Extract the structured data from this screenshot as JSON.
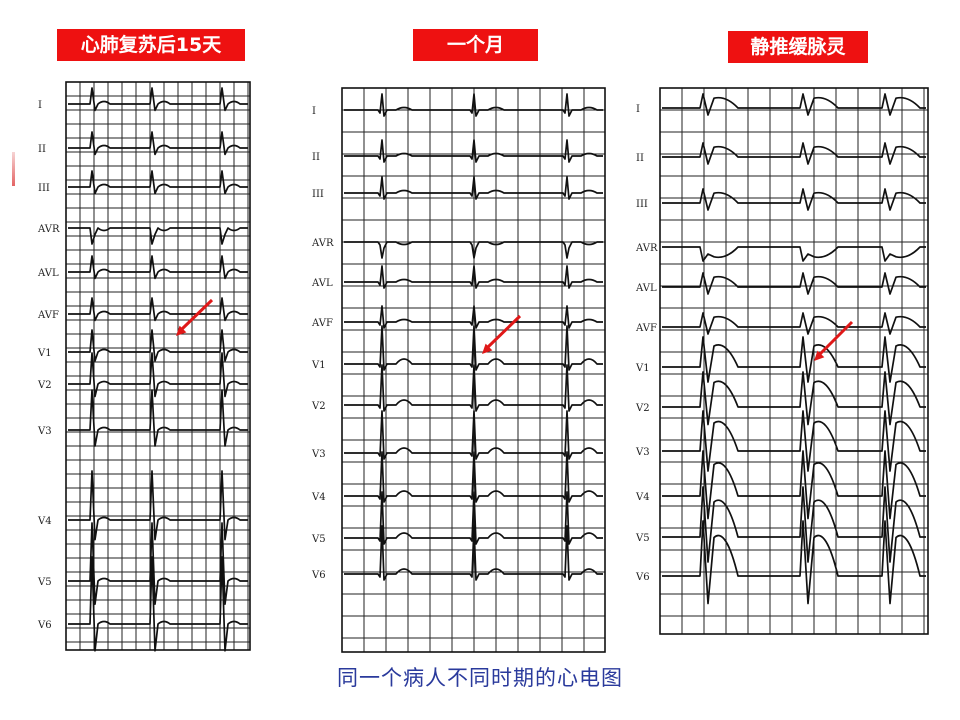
{
  "panels": [
    {
      "title": "心肺复苏后15天",
      "leads": [
        "I",
        "II",
        "III",
        "AVR",
        "AVL",
        "AVF",
        "V1",
        "V2",
        "V3",
        "V4",
        "V5",
        "V6"
      ]
    },
    {
      "title": "一个月",
      "leads": [
        "I",
        "II",
        "III",
        "AVR",
        "AVL",
        "AVF",
        "V1",
        "V2",
        "V3",
        "V4",
        "V5",
        "V6"
      ]
    },
    {
      "title": "静推缓脉灵",
      "leads": [
        "I",
        "II",
        "III",
        "AVR",
        "AVL",
        "AVF",
        "V1",
        "V2",
        "V3",
        "V4",
        "V5",
        "V6"
      ]
    }
  ],
  "caption": "同一个病人不同时期的心电图",
  "colors": {
    "title_bg": "#ee1111",
    "title_text": "#ffffff",
    "caption": "#2a3a9c",
    "arrow": "#e01818",
    "trace": "#111111"
  }
}
